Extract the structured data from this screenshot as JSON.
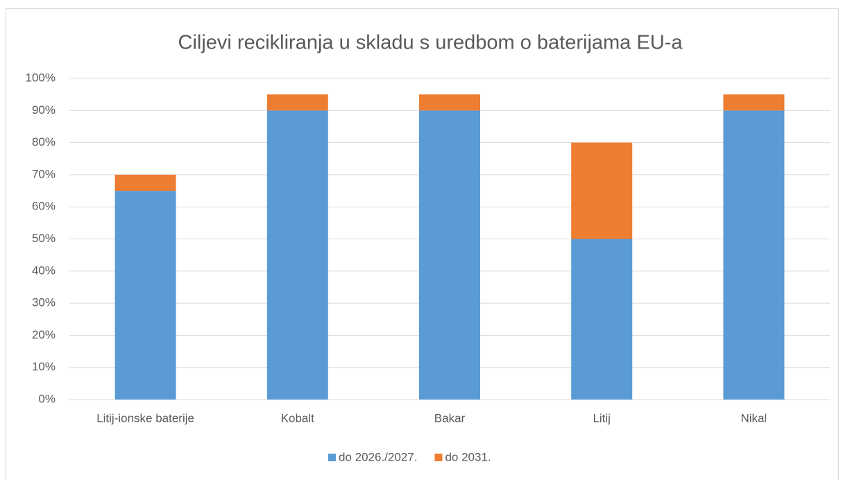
{
  "chart_data": {
    "type": "stacked_bar",
    "title": "Ciljevi recikliranja u skladu s uredbom o baterijama EU-a",
    "categories": [
      "Litij-ionske baterije",
      "Kobalt",
      "Bakar",
      "Litij",
      "Nikal"
    ],
    "series": [
      {
        "name": "do 2026./2027.",
        "color": "#5b9bd5",
        "values": [
          65,
          90,
          90,
          50,
          90
        ]
      },
      {
        "name": "do 2031.",
        "color": "#ed7d31",
        "values": [
          5,
          5,
          5,
          30,
          5
        ]
      }
    ],
    "ylim": [
      0,
      100
    ],
    "yticks": [
      {
        "value": 0,
        "label": "0%"
      },
      {
        "value": 10,
        "label": "10%"
      },
      {
        "value": 20,
        "label": "20%"
      },
      {
        "value": 30,
        "label": "30%"
      },
      {
        "value": 40,
        "label": "40%"
      },
      {
        "value": 50,
        "label": "50%"
      },
      {
        "value": 60,
        "label": "60%"
      },
      {
        "value": 70,
        "label": "70%"
      },
      {
        "value": 80,
        "label": "80%"
      },
      {
        "value": 90,
        "label": "90%"
      },
      {
        "value": 100,
        "label": "100%"
      }
    ],
    "grid": true,
    "legend": "bottom"
  }
}
